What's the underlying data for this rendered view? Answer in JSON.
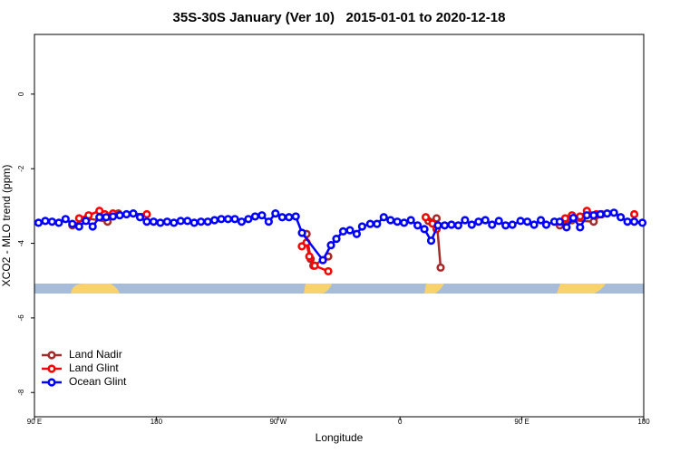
{
  "chart_data": {
    "type": "line",
    "title": "35S-30S January (Ver 10)   2015-01-01 to 2020-12-18",
    "xlabel": "Longitude",
    "ylabel": "XCO2 - MLO trend (ppm)",
    "xlim": [
      90,
      540
    ],
    "ylim": [
      -8.65,
      1.6
    ],
    "xticks": [
      {
        "value": 90,
        "label": "90 E"
      },
      180,
      {
        "value": 270,
        "label": "90 W"
      },
      {
        "value": 360,
        "label": "0"
      },
      {
        "value": 450,
        "label": "90 E"
      },
      {
        "value": 540,
        "label": "180"
      }
    ],
    "yticks": [
      0,
      -2,
      -4,
      -6,
      -8
    ],
    "legend": "bottomleft",
    "series": [
      {
        "name": "Land Nadir",
        "color": "#a52a2a",
        "x": [
          118,
          129,
          144,
          152,
          null,
          291,
          294,
          296,
          307,
          null,
          381,
          387,
          390,
          null,
          478,
          487,
          503,
          509
        ],
        "values": [
          -3.52,
          -3.33,
          -3.42,
          -3.2,
          null,
          -3.75,
          -4.42,
          -4.6,
          -4.35,
          null,
          -3.4,
          -3.33,
          -4.65,
          null,
          -3.52,
          -3.38,
          -3.42,
          -3.22
        ]
      },
      {
        "name": "Land Glint",
        "color": "#ff0000",
        "x": [
          123,
          130,
          138,
          142,
          148,
          173,
          null,
          287.5,
          291,
          293,
          297,
          307,
          null,
          379,
          384,
          387,
          null,
          482,
          487,
          493,
          498,
          505,
          null,
          533
        ],
        "values": [
          -3.33,
          -3.25,
          -3.13,
          -3.22,
          -3.2,
          -3.22,
          null,
          -4.08,
          -3.98,
          -4.35,
          -4.6,
          -4.75,
          null,
          -3.3,
          -3.47,
          -3.62,
          null,
          -3.33,
          -3.25,
          -3.28,
          -3.13,
          -3.22,
          null,
          -3.22
        ]
      },
      {
        "name": "Ocean Glint",
        "color": "#0000ff",
        "x": [
          93,
          98,
          103,
          108,
          113,
          118,
          123,
          128,
          133,
          138,
          143,
          148,
          153,
          158,
          163,
          168,
          173,
          178,
          183,
          188,
          193,
          198,
          203,
          208,
          213,
          218,
          223,
          228,
          233,
          238,
          243,
          248,
          253,
          258,
          263,
          268,
          273,
          278,
          283,
          287.6,
          303,
          309,
          313,
          318,
          323,
          328,
          332,
          338,
          343,
          348,
          353,
          358,
          363,
          368,
          373,
          378,
          383,
          388,
          393,
          398,
          403,
          408,
          413,
          418,
          423,
          428,
          433,
          438,
          443,
          449,
          454,
          459,
          464,
          468,
          474,
          478,
          483,
          488,
          493,
          498,
          503,
          508,
          513,
          518,
          523,
          528,
          533,
          539
        ],
        "values": [
          -3.45,
          -3.4,
          -3.42,
          -3.45,
          -3.35,
          -3.48,
          -3.55,
          -3.4,
          -3.55,
          -3.3,
          -3.3,
          -3.28,
          -3.25,
          -3.22,
          -3.2,
          -3.3,
          -3.42,
          -3.42,
          -3.45,
          -3.42,
          -3.45,
          -3.4,
          -3.4,
          -3.45,
          -3.42,
          -3.42,
          -3.38,
          -3.35,
          -3.35,
          -3.35,
          -3.42,
          -3.35,
          -3.28,
          -3.25,
          -3.42,
          -3.2,
          -3.3,
          -3.3,
          -3.28,
          -3.72,
          -4.45,
          -4.05,
          -3.88,
          -3.68,
          -3.65,
          -3.75,
          -3.55,
          -3.48,
          -3.48,
          -3.3,
          -3.38,
          -3.42,
          -3.45,
          -3.38,
          -3.52,
          -3.62,
          -3.93,
          -3.52,
          -3.52,
          -3.5,
          -3.52,
          -3.38,
          -3.5,
          -3.42,
          -3.38,
          -3.5,
          -3.4,
          -3.52,
          -3.5,
          -3.4,
          -3.42,
          -3.5,
          -3.38,
          -3.5,
          -3.42,
          -3.42,
          -3.57,
          -3.32,
          -3.57,
          -3.25,
          -3.25,
          -3.22,
          -3.2,
          -3.18,
          -3.3,
          -3.42,
          -3.42,
          -3.45
        ]
      }
    ]
  }
}
